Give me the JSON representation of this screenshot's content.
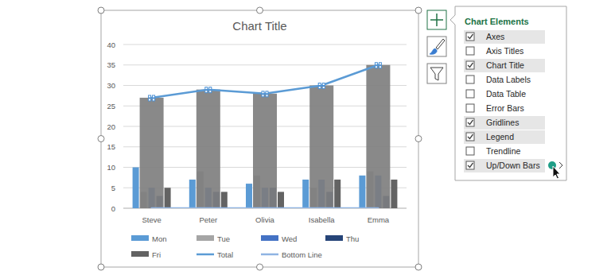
{
  "chart_data": {
    "type": "bar",
    "title": "Chart Title",
    "categories": [
      "Steve",
      "Peter",
      "Olivia",
      "Isabella",
      "Emma"
    ],
    "series": [
      {
        "name": "Mon",
        "type": "bar",
        "color": "#5b9bd5",
        "values": [
          10,
          7,
          6,
          7,
          8
        ]
      },
      {
        "name": "Tue",
        "type": "bar",
        "color": "#a5a5a5",
        "values": [
          4,
          9,
          8,
          5,
          9
        ]
      },
      {
        "name": "Wed",
        "type": "bar",
        "color": "#4472c4",
        "values": [
          5,
          5,
          5,
          7,
          8
        ]
      },
      {
        "name": "Thu",
        "type": "bar",
        "color": "#264478",
        "values": [
          3,
          4,
          5,
          4,
          3
        ]
      },
      {
        "name": "Fri",
        "type": "bar",
        "color": "#636363",
        "values": [
          5,
          4,
          4,
          7,
          7
        ]
      },
      {
        "name": "Total",
        "type": "line",
        "color": "#5b9bd5",
        "values": [
          27,
          29,
          28,
          30,
          35
        ]
      },
      {
        "name": "Bottom Line",
        "type": "line",
        "color": "#8fb4e3",
        "values": [
          0,
          0,
          0,
          0,
          0
        ]
      }
    ],
    "ylim": [
      0,
      40
    ],
    "yticks": [
      0,
      5,
      10,
      15,
      20,
      25,
      30,
      35,
      40
    ],
    "grid": true,
    "legend": "bottom"
  },
  "panel": {
    "title": "Chart Elements",
    "items": [
      {
        "label": "Axes",
        "checked": true
      },
      {
        "label": "Axis Titles",
        "checked": false
      },
      {
        "label": "Chart Title",
        "checked": true
      },
      {
        "label": "Data Labels",
        "checked": false
      },
      {
        "label": "Data Table",
        "checked": false
      },
      {
        "label": "Error Bars",
        "checked": false
      },
      {
        "label": "Gridlines",
        "checked": true
      },
      {
        "label": "Legend",
        "checked": true
      },
      {
        "label": "Trendline",
        "checked": false
      },
      {
        "label": "Up/Down Bars",
        "checked": true
      }
    ]
  }
}
